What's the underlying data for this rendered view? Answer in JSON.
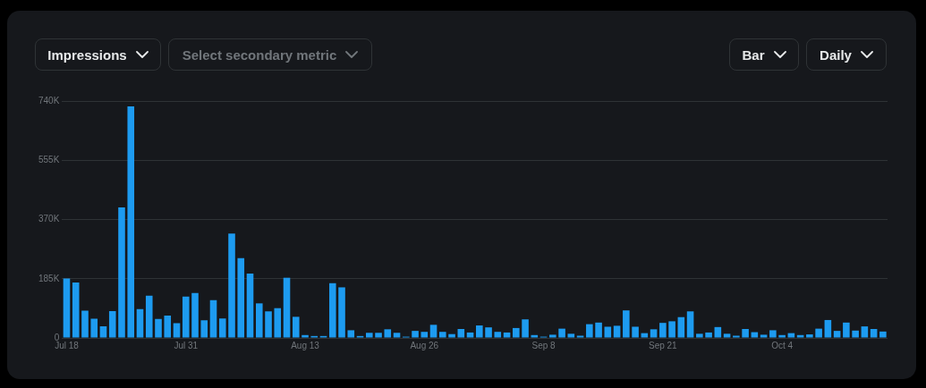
{
  "chart_data": {
    "type": "bar",
    "annotations": [
      "Impressions",
      "Select secondary metric",
      "Bar",
      "Daily"
    ],
    "categories": [
      "Jul 18",
      null,
      null,
      null,
      null,
      null,
      null,
      null,
      null,
      null,
      null,
      null,
      null,
      "Jul 31",
      null,
      null,
      null,
      null,
      null,
      null,
      null,
      null,
      null,
      null,
      null,
      null,
      "Aug 13",
      null,
      null,
      null,
      null,
      null,
      null,
      null,
      null,
      null,
      null,
      null,
      null,
      "Aug 26",
      null,
      null,
      null,
      null,
      null,
      null,
      null,
      null,
      null,
      null,
      null,
      null,
      "Sep 8",
      null,
      null,
      null,
      null,
      null,
      null,
      null,
      null,
      null,
      null,
      null,
      null,
      "Sep 21",
      null,
      null,
      null,
      null,
      null,
      null,
      null,
      null,
      null,
      null,
      null,
      null,
      "Oct 4",
      null,
      null,
      null,
      null,
      null,
      null,
      null,
      null,
      null,
      null,
      null
    ],
    "values": [
      186000,
      173000,
      85000,
      60000,
      36000,
      84000,
      408000,
      723000,
      90000,
      132000,
      59000,
      70000,
      46000,
      129000,
      140000,
      55000,
      118000,
      61000,
      326000,
      249000,
      201000,
      108000,
      83000,
      93000,
      188000,
      66000,
      9000,
      6000,
      6000,
      171000,
      158000,
      24000,
      6000,
      16000,
      16000,
      27000,
      16000,
      4000,
      22000,
      19000,
      41000,
      19000,
      12000,
      28000,
      17000,
      39000,
      33000,
      19000,
      17000,
      31000,
      58000,
      9000,
      4000,
      10000,
      29000,
      13000,
      7000,
      43000,
      48000,
      35000,
      38000,
      86000,
      35000,
      15000,
      27000,
      47000,
      52000,
      65000,
      83000,
      13000,
      17000,
      34000,
      13000,
      7000,
      28000,
      18000,
      10000,
      24000,
      9000,
      15000,
      9000,
      11000,
      29000,
      56000,
      22000,
      48000,
      23000,
      36000,
      28000,
      20000
    ],
    "color": "#1d9bf0",
    "ylim": [
      0,
      740000
    ],
    "yticks": [
      0,
      {
        "value": 185000,
        "label": "185K"
      },
      {
        "value": 370000,
        "label": "370K"
      },
      {
        "value": 555000,
        "label": "555K"
      },
      {
        "value": 740000,
        "label": "740K"
      }
    ],
    "grid": "y",
    "legend": false
  }
}
